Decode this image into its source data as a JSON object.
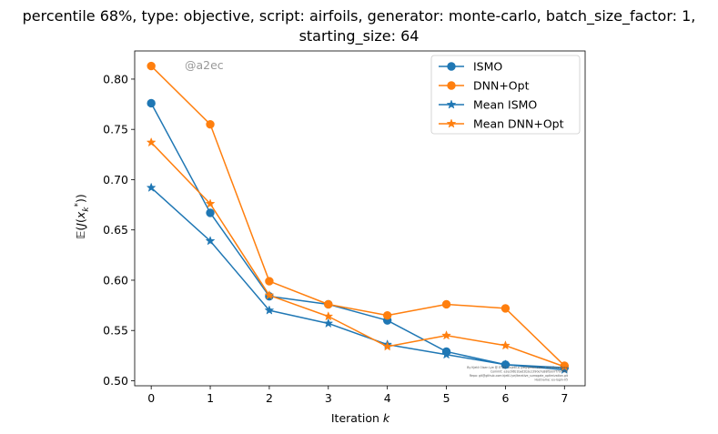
{
  "chart_data": {
    "type": "line",
    "title_line1": "percentile 68%, type: objective, script: airfoils, generator: monte-carlo, batch_size_factor: 1,",
    "title_line2": "starting_size: 64",
    "xlabel": "Iteration k",
    "ylabel": "E(J(x_k*))",
    "watermark": "@a2ec",
    "x": [
      0,
      1,
      2,
      3,
      4,
      5,
      6,
      7
    ],
    "xticks": [
      "0",
      "1",
      "2",
      "3",
      "4",
      "5",
      "6",
      "7"
    ],
    "yticks": [
      "0.50",
      "0.55",
      "0.60",
      "0.65",
      "0.70",
      "0.75",
      "0.80"
    ],
    "xlim": [
      -0.28,
      7.35
    ],
    "ylim": [
      0.495,
      0.828
    ],
    "legend_position": "top-right",
    "series": [
      {
        "name": "ISMO",
        "color": "#1f77b4",
        "marker": "circle",
        "values": [
          0.776,
          0.667,
          0.584,
          0.576,
          0.56,
          0.529,
          0.516,
          0.513
        ]
      },
      {
        "name": "DNN+Opt",
        "color": "#ff7f0e",
        "marker": "circle",
        "values": [
          0.813,
          0.755,
          0.599,
          0.576,
          0.565,
          0.576,
          0.572,
          0.515
        ]
      },
      {
        "name": "Mean ISMO",
        "color": "#1f77b4",
        "marker": "star",
        "values": [
          0.692,
          0.639,
          0.57,
          0.557,
          0.536,
          0.526,
          0.516,
          0.511
        ]
      },
      {
        "name": "Mean DNN+Opt",
        "color": "#ff7f0e",
        "marker": "star",
        "values": [
          0.737,
          0.676,
          0.585,
          0.564,
          0.534,
          0.545,
          0.535,
          0.514
        ]
      }
    ],
    "credit_lines": [
      "By Kjetil Olsen Lye @ ETHZ <kjetil.o.lye@gmail.com> and Enzo Rossi",
      "Commit: a2ec06b1bad2b2e1390e7e88fb937f7974d3",
      "Repo: git@github.com:kjetil-lye/iterative_surrogate_optimization.git",
      "Hostname: eu-login-05"
    ]
  }
}
